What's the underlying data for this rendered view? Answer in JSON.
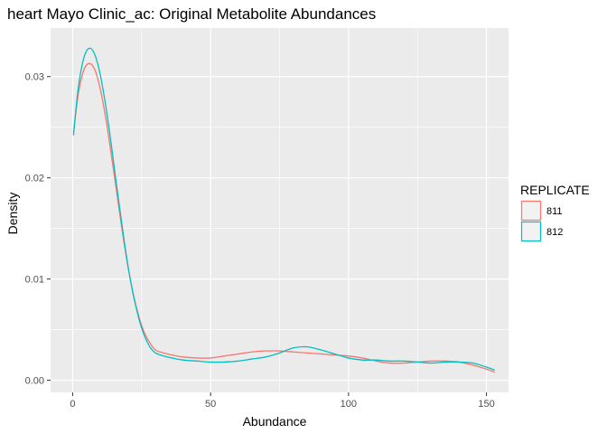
{
  "chart_data": {
    "type": "line",
    "title": "heart Mayo Clinic_ac: Original Metabolite Abundances",
    "xlabel": "Abundance",
    "ylabel": "Density",
    "xlim": [
      -8,
      158
    ],
    "ylim": [
      -0.0012,
      0.0348
    ],
    "x_ticks": [
      0,
      50,
      100,
      150
    ],
    "x_tick_labels": [
      "0",
      "50",
      "100",
      "150"
    ],
    "y_ticks": [
      0.0,
      0.01,
      0.02,
      0.03
    ],
    "y_tick_labels": [
      "0.00",
      "0.01",
      "0.02",
      "0.03"
    ],
    "grid": true,
    "legend": {
      "title": "REPLICATE",
      "position": "right",
      "entries": [
        "811",
        "812"
      ]
    },
    "colors": {
      "811": "#F8766D",
      "812": "#00BFC4",
      "panel_background": "#EBEBEB",
      "grid": "#FFFFFF"
    },
    "series": [
      {
        "name": "811",
        "x": [
          0.3,
          2,
          4,
          6,
          8,
          10,
          12,
          14,
          16,
          18,
          20,
          22,
          24,
          26,
          28,
          30,
          33,
          36,
          40,
          45,
          50,
          55,
          60,
          65,
          70,
          75,
          80,
          85,
          90,
          95,
          100,
          105,
          110,
          115,
          120,
          125,
          130,
          135,
          140,
          145,
          150,
          153
        ],
        "y": [
          0.0244,
          0.0282,
          0.0306,
          0.0313,
          0.0307,
          0.0288,
          0.0259,
          0.0223,
          0.0185,
          0.0147,
          0.0113,
          0.0085,
          0.0063,
          0.0047,
          0.0037,
          0.003,
          0.0027,
          0.0025,
          0.0023,
          0.0022,
          0.0022,
          0.0024,
          0.0026,
          0.0028,
          0.0029,
          0.0029,
          0.0028,
          0.0027,
          0.0026,
          0.0025,
          0.0024,
          0.0022,
          0.0019,
          0.0017,
          0.0017,
          0.0018,
          0.0019,
          0.0019,
          0.0018,
          0.0015,
          0.0011,
          0.0008
        ]
      },
      {
        "name": "812",
        "x": [
          0.3,
          2,
          4,
          6,
          8,
          10,
          12,
          14,
          16,
          18,
          20,
          22,
          24,
          26,
          28,
          30,
          33,
          36,
          40,
          45,
          50,
          55,
          60,
          65,
          70,
          75,
          80,
          85,
          90,
          95,
          100,
          105,
          110,
          115,
          120,
          125,
          130,
          135,
          140,
          145,
          150,
          153
        ],
        "y": [
          0.0242,
          0.0288,
          0.0318,
          0.0328,
          0.0322,
          0.0302,
          0.0271,
          0.0233,
          0.0191,
          0.0151,
          0.0114,
          0.0084,
          0.0061,
          0.0044,
          0.0033,
          0.0027,
          0.0024,
          0.0022,
          0.002,
          0.0019,
          0.0018,
          0.0018,
          0.0019,
          0.0021,
          0.0023,
          0.0027,
          0.0032,
          0.0033,
          0.003,
          0.0026,
          0.0022,
          0.002,
          0.002,
          0.0019,
          0.0019,
          0.0018,
          0.0017,
          0.0018,
          0.0018,
          0.0017,
          0.0013,
          0.001
        ]
      }
    ]
  }
}
